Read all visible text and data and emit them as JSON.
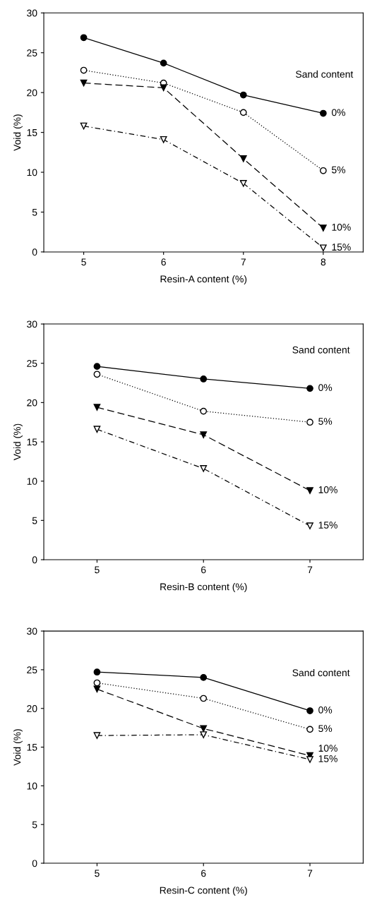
{
  "chart_data": [
    {
      "type": "line",
      "xlabel": "Resin-A content (%)",
      "ylabel": "Void (%)",
      "x": [
        5,
        6,
        7,
        8
      ],
      "xlim": [
        4.5,
        8.5
      ],
      "xticks": [
        5,
        6,
        7,
        8
      ],
      "ylim": [
        0,
        30
      ],
      "yticks": [
        0,
        5,
        10,
        15,
        20,
        25,
        30
      ],
      "grid": false,
      "legend": false,
      "annotations": [
        "Sand content"
      ],
      "series": [
        {
          "name": "0%",
          "color": "#000000",
          "colors": [
            "#000000",
            "#000000",
            "#000000",
            "#000000"
          ],
          "marker": "circle",
          "line_style": "solid",
          "values": [
            26.9,
            23.7,
            19.7,
            17.4
          ]
        },
        {
          "name": "5%",
          "color": "#000000",
          "colors": [
            "#ffffff",
            "#ffffff",
            "#ffffff",
            "#ffffff"
          ],
          "marker": "circle",
          "line_style": "dotted",
          "values": [
            22.8,
            21.2,
            17.5,
            10.2
          ]
        },
        {
          "name": "10%",
          "color": "#000000",
          "colors": [
            "#000000",
            "#000000",
            "#000000",
            "#000000"
          ],
          "marker": "triangle",
          "line_style": "dashed",
          "values": [
            21.2,
            20.6,
            11.7,
            3.0
          ]
        },
        {
          "name": "15%",
          "color": "#000000",
          "colors": [
            "#ffffff",
            "#ffffff",
            "#ffffff",
            "#ffffff"
          ],
          "marker": "triangle",
          "line_style": "dashdot",
          "values": [
            15.8,
            14.1,
            8.6,
            0.5
          ]
        }
      ]
    },
    {
      "type": "line",
      "xlabel": "Resin-B content (%)",
      "ylabel": "Void (%)",
      "x": [
        5,
        6,
        7
      ],
      "xlim": [
        4.5,
        7.5
      ],
      "xticks": [
        5,
        6,
        7
      ],
      "ylim": [
        0,
        30
      ],
      "yticks": [
        0,
        5,
        10,
        15,
        20,
        25,
        30
      ],
      "grid": false,
      "legend": false,
      "annotations": [
        "Sand content"
      ],
      "series": [
        {
          "name": "0%",
          "color": "#000000",
          "colors": [
            "#000000",
            "#000000",
            "#000000"
          ],
          "marker": "circle",
          "line_style": "solid",
          "values": [
            24.6,
            23.0,
            21.8
          ]
        },
        {
          "name": "5%",
          "color": "#000000",
          "colors": [
            "#ffffff",
            "#ffffff",
            "#ffffff"
          ],
          "marker": "circle",
          "line_style": "dotted",
          "values": [
            23.6,
            18.9,
            17.5
          ]
        },
        {
          "name": "10%",
          "color": "#000000",
          "colors": [
            "#000000",
            "#000000",
            "#000000"
          ],
          "marker": "triangle",
          "line_style": "dashed",
          "values": [
            19.4,
            15.9,
            8.8
          ]
        },
        {
          "name": "15%",
          "color": "#000000",
          "colors": [
            "#ffffff",
            "#ffffff",
            "#ffffff"
          ],
          "marker": "triangle",
          "line_style": "dashdot",
          "values": [
            16.6,
            11.6,
            4.3
          ]
        }
      ]
    },
    {
      "type": "line",
      "xlabel": "Resin-C content (%)",
      "ylabel": "Void (%)",
      "x": [
        5,
        6,
        7
      ],
      "xlim": [
        4.5,
        7.5
      ],
      "xticks": [
        5,
        6,
        7
      ],
      "ylim": [
        0,
        30
      ],
      "yticks": [
        0,
        5,
        10,
        15,
        20,
        25,
        30
      ],
      "grid": false,
      "legend": false,
      "annotations": [
        "Sand content"
      ],
      "series": [
        {
          "name": "0%",
          "color": "#000000",
          "colors": [
            "#000000",
            "#000000",
            "#000000"
          ],
          "marker": "circle",
          "line_style": "solid",
          "values": [
            24.7,
            24.0,
            19.7
          ]
        },
        {
          "name": "5%",
          "color": "#000000",
          "colors": [
            "#ffffff",
            "#ffffff",
            "#ffffff"
          ],
          "marker": "circle",
          "line_style": "dotted",
          "values": [
            23.3,
            21.3,
            17.3
          ]
        },
        {
          "name": "10%",
          "color": "#000000",
          "colors": [
            "#000000",
            "#000000",
            "#000000"
          ],
          "marker": "triangle",
          "line_style": "dashed",
          "values": [
            22.5,
            17.4,
            13.9
          ]
        },
        {
          "name": "15%",
          "color": "#000000",
          "colors": [
            "#ffffff",
            "#ffffff",
            "#ffffff"
          ],
          "marker": "triangle",
          "line_style": "dashdot",
          "values": [
            16.5,
            16.6,
            13.4
          ]
        }
      ]
    }
  ]
}
